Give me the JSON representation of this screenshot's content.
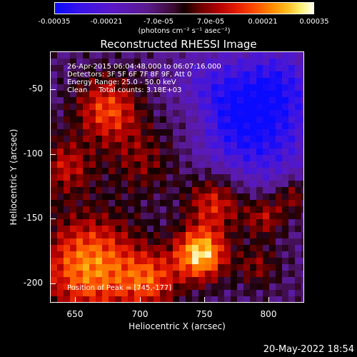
{
  "colorbar": {
    "ticks": [
      "-0.00035",
      "-0.00021",
      "-7.0e-05",
      "7.0e-05",
      "0.00021",
      "0.00035"
    ],
    "unit": "(photons cm⁻² s⁻¹ asec⁻²)"
  },
  "title": "Reconstructed RHESSI Image",
  "info": {
    "time": "26-Apr-2015 06:04:48.000 to 06:07:16.000",
    "detectors": "Detectors: 3F 5F 6F 7F 8F 9F, Att 0",
    "energy": "Energy Range: 25.0 - 50.0 keV",
    "clean": "Clean     Total counts: 3.18E+03"
  },
  "peak": "Position of Peak = [745,-177]",
  "axes": {
    "xlabel": "Heliocentric X (arcsec)",
    "ylabel": "Heliocentric Y (arcsec)",
    "xticks": [
      "650",
      "700",
      "750",
      "800"
    ],
    "yticks": [
      "-50",
      "-100",
      "-150",
      "-200"
    ]
  },
  "timestamp": "20-May-2022 18:54",
  "colors": {
    "background": "#000000",
    "low": "#0a0aff",
    "mid": "#5a1a8c",
    "high": "#fffff0"
  }
}
